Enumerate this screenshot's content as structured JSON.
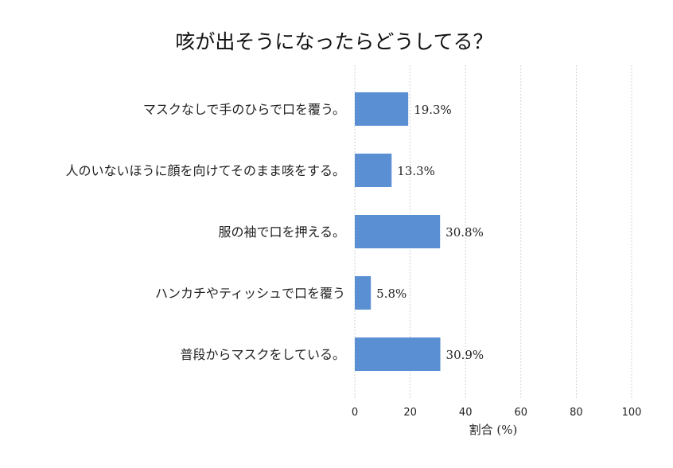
{
  "chart_data": {
    "type": "bar",
    "orientation": "horizontal",
    "title": "咳が出そうになったらどうしてる？",
    "xlabel": "割合 (%)",
    "ylabel": "",
    "categories": [
      "マスクなしで手のひらで口を覆う。",
      "人のいないほうに顔を向けてそのまま咳をする。",
      "服の袖で口を押える。",
      "ハンカチやティッシュで口を覆う",
      "普段からマスクをしている。"
    ],
    "values": [
      19.3,
      13.3,
      30.8,
      5.8,
      30.9
    ],
    "value_labels": [
      "19.3%",
      "13.3%",
      "30.8%",
      "5.8%",
      "30.9%"
    ],
    "xlim": [
      0,
      100
    ],
    "xticks": [
      0,
      20,
      40,
      60,
      80,
      100
    ],
    "xtick_labels": [
      "0",
      "20",
      "40",
      "60",
      "80",
      "100"
    ],
    "grid": "vertical dashed",
    "bar_color": "#5b8fd4"
  }
}
